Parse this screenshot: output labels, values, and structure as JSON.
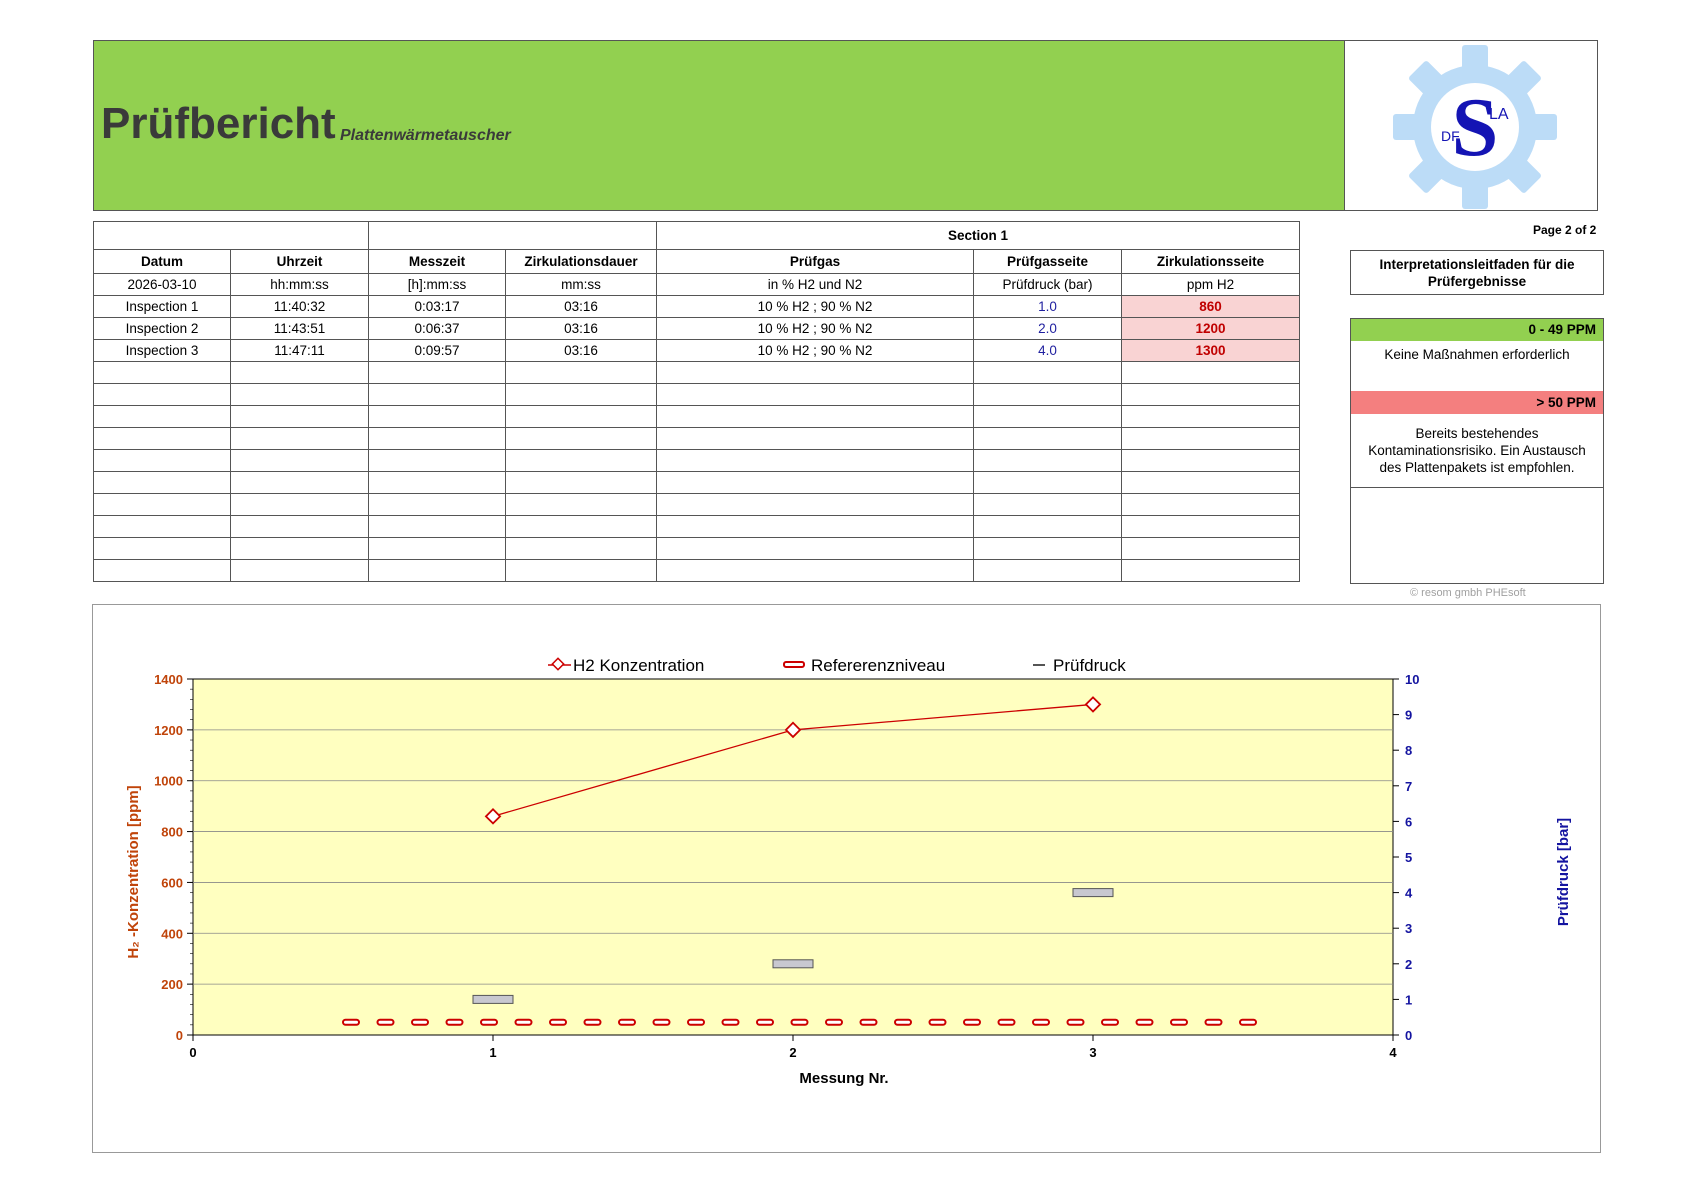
{
  "header": {
    "title": "Prüfbericht",
    "subtitle": "Plattenwärmetauscher",
    "logo_text_top": "LA",
    "logo_text_bottom": "DF",
    "logo_letter": "S"
  },
  "table": {
    "section_label": "Section 1",
    "columns": [
      "Datum",
      "Uhrzeit",
      "Messzeit",
      "Zirkulationsdauer",
      "Prüfgas",
      "Prüfgasseite",
      "Zirkulationsseite"
    ],
    "units": [
      "2026-03-10",
      "hh:mm:ss",
      "[h]:mm:ss",
      "mm:ss",
      "in % H2 und N2",
      "Prüfdruck (bar)",
      "ppm H2"
    ],
    "rows": [
      [
        "Inspection 1",
        "11:40:32",
        "0:03:17",
        "03:16",
        "10 % H2 ; 90 % N2",
        "1.0",
        "860"
      ],
      [
        "Inspection 2",
        "11:43:51",
        "0:06:37",
        "03:16",
        "10 % H2 ; 90 % N2",
        "2.0",
        "1200"
      ],
      [
        "Inspection 3",
        "11:47:11",
        "0:09:57",
        "03:16",
        "10 % H2 ; 90 % N2",
        "4.0",
        "1300"
      ]
    ],
    "empty_rows": 10
  },
  "guide": {
    "page": "Page 2 of 2",
    "title": "Interpretationsleitfaden für die Prüfergebnisse",
    "low_label": "0 - 49 PPM",
    "low_text": "Keine Maßnahmen erforderlich",
    "high_label": "> 50 PPM",
    "high_text": "Bereits bestehendes Kontaminationsrisiko. Ein Austausch des Plattenpakets ist empfohlen.",
    "copyright": "© resom gmbh PHEsoft",
    "colors": {
      "low": "#92d050",
      "high": "#f47f7f"
    }
  },
  "chart_data": {
    "type": "line",
    "legend": [
      "H2 Konzentration",
      "Refererenzniveau",
      "Prüfdruck"
    ],
    "xlabel": "Messung Nr.",
    "ylabel_left": "H₂ -Konzentration  [ppm]",
    "ylabel_right": "Prüfdruck  [bar]",
    "xlim": [
      0,
      4
    ],
    "ylim_left": [
      0,
      1400
    ],
    "ylim_right": [
      0,
      10
    ],
    "x_ticks": [
      0,
      1,
      2,
      3,
      4
    ],
    "y_left_ticks": [
      0,
      200,
      400,
      600,
      800,
      1000,
      1200,
      1400
    ],
    "y_right_ticks": [
      0,
      1,
      2,
      3,
      4,
      5,
      6,
      7,
      8,
      9,
      10
    ],
    "series": [
      {
        "name": "H2 Konzentration",
        "axis": "left",
        "x": [
          1,
          2,
          3
        ],
        "values": [
          860,
          1200,
          1300
        ],
        "color": "#cc0000"
      },
      {
        "name": "Refererenzniveau",
        "axis": "left",
        "x_range": [
          0.5,
          3.5
        ],
        "value": 50,
        "color": "#cc0000"
      },
      {
        "name": "Prüfdruck",
        "axis": "right",
        "x": [
          1,
          2,
          3
        ],
        "values": [
          1.0,
          2.0,
          4.0
        ],
        "color": "#a0a0a0"
      }
    ],
    "plot_background": "#ffffc0",
    "grid": true
  }
}
